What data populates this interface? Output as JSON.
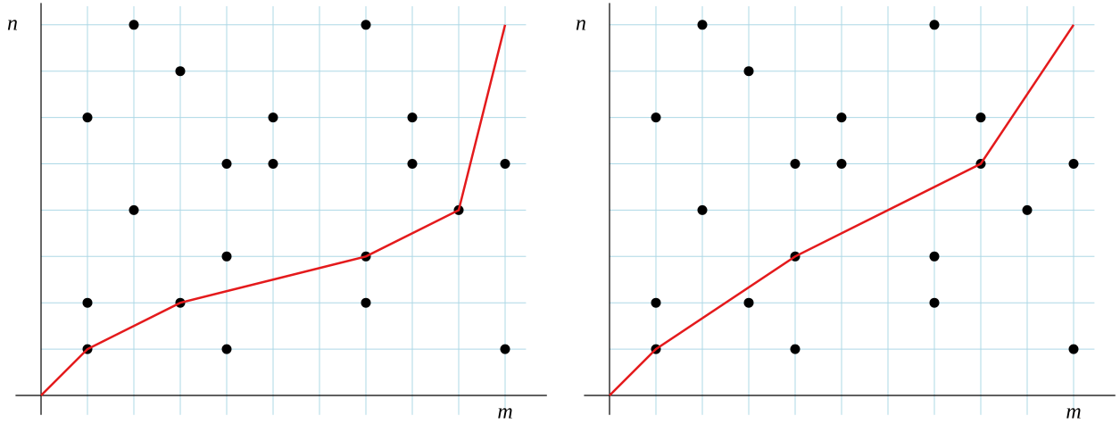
{
  "chart_data": [
    {
      "type": "scatter",
      "x_label": "m",
      "y_label": "n",
      "xlim": [
        -0.55,
        10.9
      ],
      "ylim": [
        -0.42,
        8.47
      ],
      "xticks": [
        1,
        2,
        3,
        4,
        5,
        6,
        7,
        8,
        9,
        10
      ],
      "yticks": [
        1,
        2,
        3,
        4,
        5,
        6,
        7,
        8
      ],
      "grid": true,
      "grid_color": "#add8e6",
      "series": [
        {
          "type": "scatter",
          "color": "#000000",
          "x": [
            2,
            7,
            3,
            1,
            5,
            8,
            4,
            5,
            8,
            10,
            2,
            9,
            4,
            7,
            1,
            3,
            7,
            1,
            4,
            10
          ],
          "values": [
            8,
            8,
            7,
            6,
            6,
            6,
            5,
            5,
            5,
            5,
            4,
            4,
            3,
            3,
            2,
            2,
            2,
            1,
            1,
            1
          ]
        },
        {
          "type": "line",
          "color": "#e41a1c",
          "x": [
            0,
            1,
            3,
            7,
            9,
            10
          ],
          "values": [
            0,
            1,
            2,
            3,
            4,
            8
          ]
        }
      ]
    },
    {
      "type": "scatter",
      "x_label": "m",
      "y_label": "n",
      "xlim": [
        -0.55,
        10.9
      ],
      "ylim": [
        -0.42,
        8.47
      ],
      "xticks": [
        1,
        2,
        3,
        4,
        5,
        6,
        7,
        8,
        9,
        10
      ],
      "yticks": [
        1,
        2,
        3,
        4,
        5,
        6,
        7,
        8
      ],
      "grid": true,
      "grid_color": "#add8e6",
      "series": [
        {
          "type": "scatter",
          "color": "#000000",
          "x": [
            2,
            7,
            3,
            1,
            5,
            8,
            4,
            5,
            8,
            10,
            2,
            9,
            4,
            7,
            1,
            3,
            7,
            1,
            4,
            10
          ],
          "values": [
            8,
            8,
            7,
            6,
            6,
            6,
            5,
            5,
            5,
            5,
            4,
            4,
            3,
            3,
            2,
            2,
            2,
            1,
            1,
            1
          ]
        },
        {
          "type": "line",
          "color": "#e41a1c",
          "x": [
            0,
            1,
            4,
            8,
            10
          ],
          "values": [
            0,
            1,
            3,
            5,
            8
          ]
        }
      ]
    }
  ]
}
